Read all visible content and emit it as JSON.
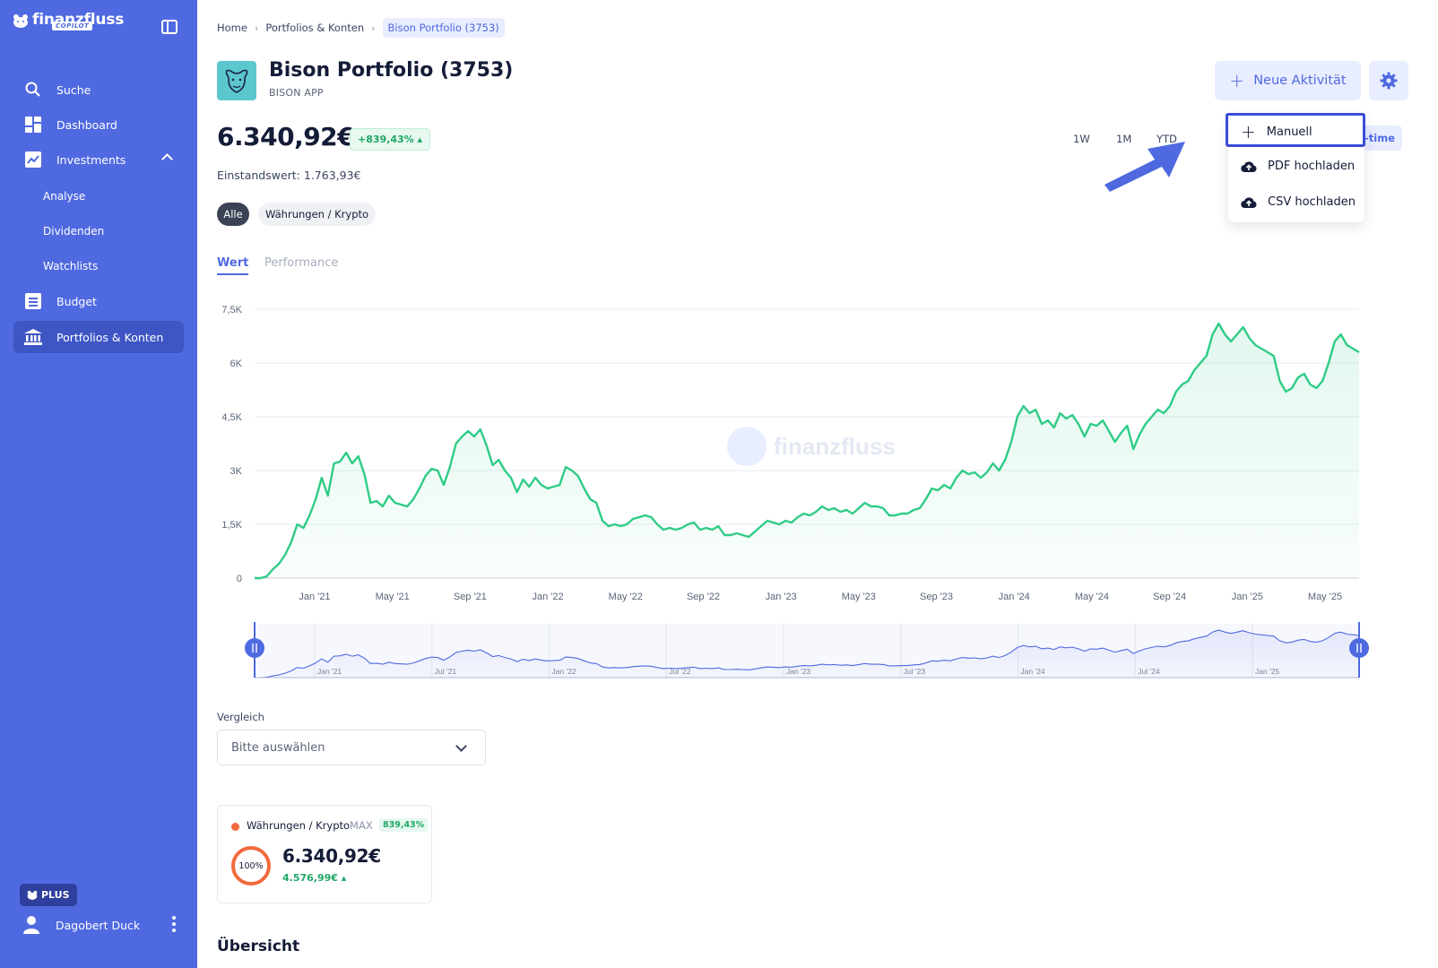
{
  "brand": {
    "name": "finanzfluss",
    "badge": "COPILOT"
  },
  "sidebar": {
    "items": [
      {
        "label": "Suche",
        "icon": "search-icon"
      },
      {
        "label": "Dashboard",
        "icon": "dashboard-icon"
      },
      {
        "label": "Investments",
        "icon": "trend-icon"
      },
      {
        "label": "Budget",
        "icon": "list-icon"
      },
      {
        "label": "Portfolios & Konten",
        "icon": "bank-icon"
      }
    ],
    "sub_items": [
      "Analyse",
      "Dividenden",
      "Watchlists"
    ],
    "plus_label": "PLUS",
    "user_name": "Dagobert Duck"
  },
  "breadcrumb": {
    "home": "Home",
    "portfolios": "Portfolios & Konten",
    "current": "Bison Portfolio (3753)"
  },
  "header": {
    "title": "Bison Portfolio (3753)",
    "subtitle": "BISON APP",
    "new_activity_label": "Neue Aktivität"
  },
  "summary": {
    "value": "6.340,92€",
    "change": "+839,43% ▴",
    "einstand": "Einstandswert: 1.763,93€"
  },
  "ranges": {
    "w1": "1W",
    "m1": "1M",
    "ytd": "YTD",
    "all": "ll-time"
  },
  "dropdown": {
    "manual": "Manuell",
    "pdf": "PDF hochladen",
    "csv": "CSV hochladen"
  },
  "filters": {
    "all": "Alle",
    "currencies": "Währungen / Krypto"
  },
  "tabs": {
    "value": "Wert",
    "performance": "Performance"
  },
  "chart_data": {
    "type": "area",
    "watermark": "finanzfluss",
    "y_ticks": [
      "0",
      "1,5K",
      "3K",
      "4,5K",
      "6K",
      "7,5K"
    ],
    "ylim": [
      0,
      7500
    ],
    "x_ticks": [
      "Jan '21",
      "May '21",
      "Sep '21",
      "Jan '22",
      "May '22",
      "Sep '22",
      "Jan '23",
      "May '23",
      "Sep '23",
      "Jan '24",
      "May '24",
      "Sep '24",
      "Jan '25",
      "May '25"
    ],
    "navigator_ticks": [
      "Jan '21",
      "Jul '21",
      "Jan '22",
      "Jul '22",
      "Jan '23",
      "Jul '23",
      "Jan '24",
      "Jul '24",
      "Jan '25"
    ],
    "color": "#2ecc85",
    "series": [
      {
        "values": [
          0,
          0,
          50,
          250,
          400,
          650,
          1000,
          1500,
          1400,
          1750,
          2200,
          2800,
          2300,
          3200,
          3250,
          3500,
          3200,
          3400,
          2900,
          2100,
          2150,
          2000,
          2300,
          2100,
          2050,
          2000,
          2200,
          2500,
          2850,
          3050,
          3000,
          2600,
          3100,
          3750,
          3950,
          4100,
          3950,
          4150,
          3700,
          3150,
          3300,
          3000,
          2800,
          2400,
          2750,
          2550,
          2800,
          2600,
          2500,
          2550,
          2600,
          3100,
          3000,
          2850,
          2500,
          2200,
          2100,
          1600,
          1450,
          1500,
          1450,
          1500,
          1650,
          1700,
          1750,
          1700,
          1500,
          1350,
          1400,
          1350,
          1400,
          1500,
          1550,
          1350,
          1400,
          1350,
          1450,
          1200,
          1200,
          1250,
          1200,
          1150,
          1300,
          1450,
          1600,
          1550,
          1500,
          1600,
          1550,
          1700,
          1800,
          1750,
          1850,
          2000,
          1900,
          1950,
          1850,
          1900,
          1800,
          1950,
          2100,
          2000,
          2000,
          1950,
          1750,
          1750,
          1800,
          1800,
          1900,
          1950,
          2200,
          2500,
          2450,
          2600,
          2500,
          2800,
          3000,
          2900,
          2950,
          2800,
          2950,
          3200,
          3000,
          3300,
          3800,
          4500,
          4800,
          4600,
          4700,
          4300,
          4400,
          4200,
          4600,
          4450,
          4550,
          4300,
          3950,
          4300,
          4250,
          4400,
          4100,
          3800,
          4050,
          4250,
          3600,
          4000,
          4300,
          4500,
          4700,
          4600,
          4800,
          5200,
          5400,
          5500,
          5800,
          6000,
          6200,
          6800,
          7100,
          6800,
          6600,
          6800,
          7000,
          6700,
          6500,
          6400,
          6300,
          6200,
          5500,
          5200,
          5300,
          5600,
          5700,
          5400,
          5300,
          5500,
          6000,
          6600,
          6800,
          6500,
          6400,
          6300
        ]
      }
    ]
  },
  "comparison": {
    "label": "Vergleich",
    "placeholder": "Bitte auswählen"
  },
  "asset": {
    "name": "Währungen / Krypto",
    "max": "MAX",
    "pct": "839,43%",
    "share": "100%",
    "value": "6.340,92€",
    "gain": "4.576,99€ ▴"
  },
  "overview": {
    "title": "Übersicht"
  }
}
